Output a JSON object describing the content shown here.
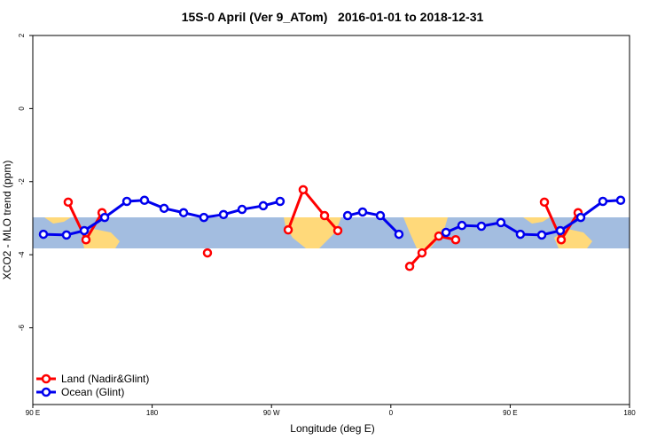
{
  "chart_data": {
    "type": "line",
    "title": "15S-0 April (Ver 9_ATom)   2016-01-01 to 2018-12-31",
    "x_label": "Longitude (deg E)",
    "y_label": "XCO2 - MLO trend (ppm)",
    "xlim": [
      90,
      540
    ],
    "xticks": [
      {
        "value": 90,
        "label": "90 E"
      },
      {
        "value": 180,
        "label": "180"
      },
      {
        "value": 270,
        "label": "90 W"
      },
      {
        "value": 360,
        "label": "0"
      },
      {
        "value": 450,
        "label": "90 E"
      },
      {
        "value": 540,
        "label": "180"
      }
    ],
    "ylim": [
      -8.1,
      2
    ],
    "yticks": [
      2,
      0,
      -2,
      -4,
      -6
    ],
    "legend": "bottomleft",
    "series": [
      {
        "name": "Land (Nadir&Glint)",
        "color": "#ff0000",
        "x": [
          116.7,
          130.1,
          142.2,
          null,
          221.7,
          null,
          282.6,
          293.9,
          310,
          320,
          null,
          374.2,
          383.5,
          396.2,
          408.9,
          null,
          475.8,
          488.5,
          501.2
        ],
        "values": [
          -2.56,
          -3.59,
          -2.85,
          null,
          -3.95,
          null,
          -3.32,
          -2.22,
          -2.93,
          -3.34,
          null,
          -4.32,
          -3.95,
          -3.49,
          -3.59,
          null,
          -2.56,
          -3.59,
          -2.85
        ]
      },
      {
        "name": "Ocean (Glint)",
        "color": "#0000ee",
        "x": [
          98,
          115.4,
          128.8,
          144.2,
          160.9,
          174.2,
          189,
          203.7,
          219,
          233.8,
          247.8,
          263.8,
          276.5,
          null,
          327.4,
          338.7,
          352.1,
          366.1,
          null,
          401.6,
          413.6,
          428.3,
          443,
          457.7,
          473.8,
          487.8,
          503.2,
          519.9,
          533.3
        ],
        "values": [
          -3.44,
          -3.46,
          -3.34,
          -2.98,
          -2.54,
          -2.51,
          -2.73,
          -2.85,
          -2.98,
          -2.9,
          -2.76,
          -2.66,
          -2.54,
          null,
          -2.93,
          -2.83,
          -2.93,
          -3.44,
          null,
          -3.39,
          -3.2,
          -3.22,
          -3.12,
          -3.44,
          -3.46,
          -3.34,
          -2.98,
          -2.54,
          -2.51
        ]
      }
    ]
  }
}
